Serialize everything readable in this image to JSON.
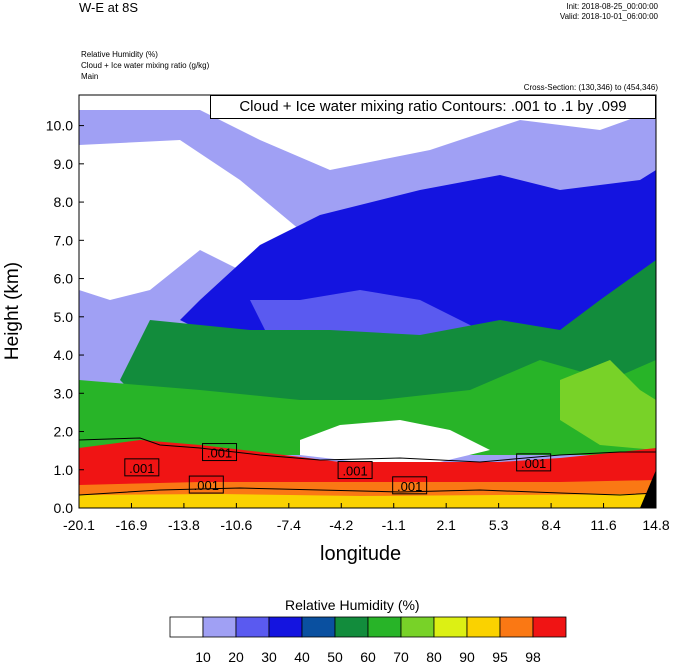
{
  "header": {
    "title": "W-E at 8S",
    "init": "Init: 2018-08-25_00:00:00",
    "valid": "Valid: 2018-10-01_06:00:00",
    "fields": [
      "Relative Humidity   (%)",
      "Cloud + Ice water mixing ratio   (g/kg)",
      "Main"
    ],
    "cross_section": "Cross-Section: (130,346) to (454,346)",
    "contour_banner": "Cloud + Ice water mixing ratio Contours: .001 to .1 by .099"
  },
  "colors": {
    "palette": [
      "#ffffff",
      "#a0a0f4",
      "#5a5af0",
      "#1414e0",
      "#0a50a0",
      "#128c3c",
      "#28b428",
      "#78d228",
      "#dcf014",
      "#fad200",
      "#fa7814",
      "#f01414"
    ],
    "background_dark": "#000000"
  },
  "chart_data": {
    "type": "heatmap",
    "xlabel": "longitude",
    "ylabel": "Height (km)",
    "xlim": [
      -20.1,
      14.8
    ],
    "ylim": [
      0.0,
      10.8
    ],
    "x_ticks": [
      "-20.1",
      "-16.9",
      "-13.8",
      "-10.6",
      "-7.4",
      "-4.2",
      "-1.1",
      "2.1",
      "5.3",
      "8.4",
      "11.6",
      "14.8"
    ],
    "y_ticks": [
      "0.0",
      "1.0",
      "2.0",
      "3.0",
      "4.0",
      "5.0",
      "6.0",
      "7.0",
      "8.0",
      "9.0",
      "10.0"
    ],
    "colorbar": {
      "title": "Relative Humidity  (%)",
      "levels": [
        "10",
        "20",
        "30",
        "40",
        "50",
        "60",
        "70",
        "80",
        "90",
        "95",
        "98"
      ]
    },
    "contour_labels": [
      {
        "text": ".001",
        "x": -16.3,
        "y": 1.05
      },
      {
        "text": ".001",
        "x": -11.6,
        "y": 1.45
      },
      {
        "text": ".001",
        "x": -12.4,
        "y": 0.6
      },
      {
        "text": ".001",
        "x": -3.4,
        "y": 0.98
      },
      {
        "text": ".001",
        "x": -0.1,
        "y": 0.58
      },
      {
        "text": ".001",
        "x": 7.4,
        "y": 1.18
      }
    ]
  }
}
